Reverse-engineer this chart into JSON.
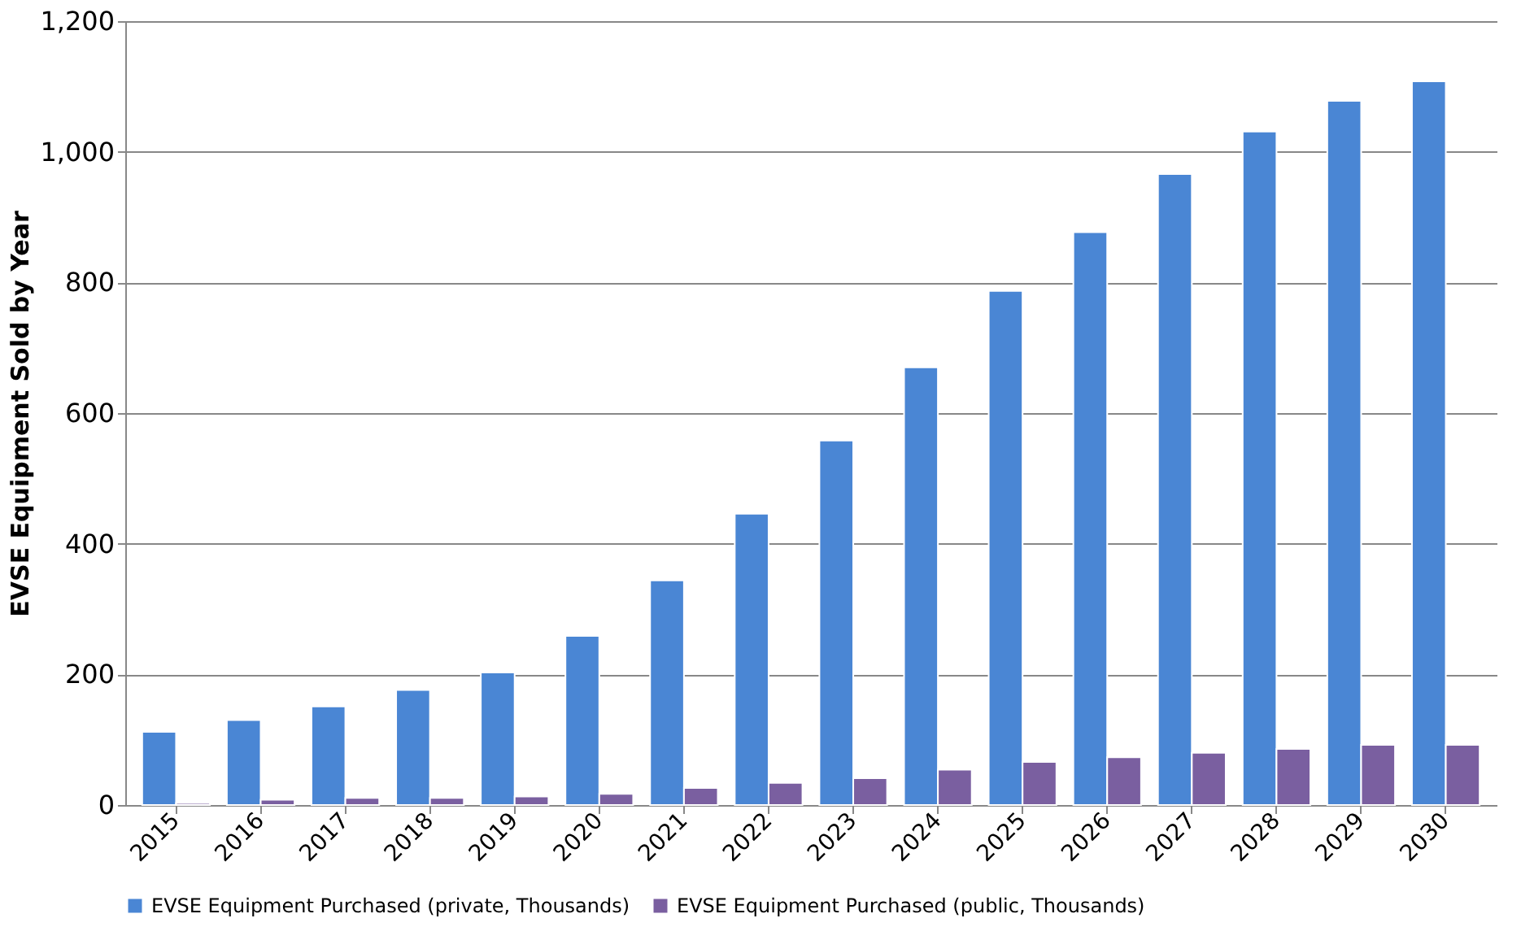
{
  "chart_data": {
    "type": "bar",
    "ylabel": "EVSE Equipment Sold by Year",
    "categories": [
      "2015",
      "2016",
      "2017",
      "2018",
      "2019",
      "2020",
      "2021",
      "2022",
      "2023",
      "2024",
      "2025",
      "2026",
      "2027",
      "2028",
      "2029",
      "2030"
    ],
    "series": [
      {
        "name": "EVSE Equipment Purchased (private, Thousands)",
        "color": "#4a86d4",
        "values": [
          112,
          130,
          151,
          176,
          203,
          259,
          344,
          446,
          558,
          670,
          787,
          877,
          966,
          1031,
          1078,
          1108
        ]
      },
      {
        "name": "EVSE Equipment Purchased (public, Thousands)",
        "color": "#7a5fa0",
        "values": [
          3,
          8,
          11,
          11,
          13,
          17,
          26,
          34,
          41,
          54,
          66,
          73,
          80,
          86,
          92,
          92
        ]
      }
    ],
    "ylim": [
      0,
      1200
    ],
    "yticks": [
      0,
      200,
      400,
      600,
      800,
      {
        "value": 1000,
        "label": "1,000"
      },
      {
        "value": 1200,
        "label": "1,200"
      }
    ],
    "grid": "y",
    "legend": "bottom"
  }
}
